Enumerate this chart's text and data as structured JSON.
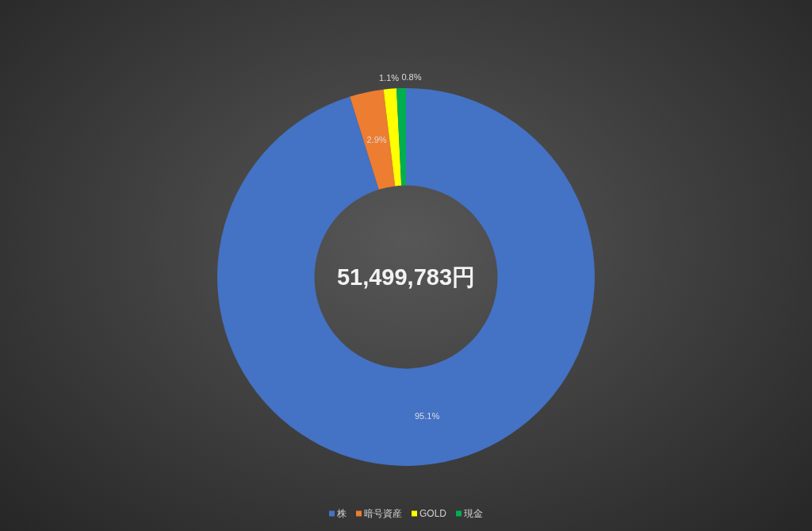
{
  "chart_data": {
    "type": "donut",
    "categories": [
      "株",
      "暗号資産",
      "GOLD",
      "現金"
    ],
    "values": [
      95.1,
      2.9,
      1.1,
      0.8
    ],
    "colors": [
      "#4472c4",
      "#ed7d31",
      "#ffff00",
      "#00b050"
    ],
    "value_labels": [
      "95.1%",
      "2.9%",
      "1.1%",
      "0.8%"
    ],
    "legend": "bottom",
    "annotations": [
      "51,499,783円"
    ]
  }
}
